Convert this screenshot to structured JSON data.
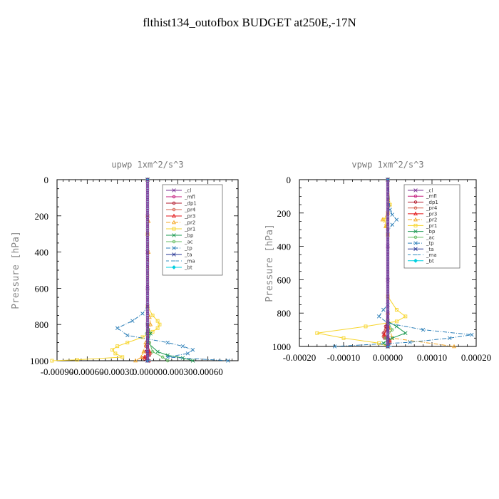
{
  "title": "flthist134_outofbox  BUDGET at250E,-17N",
  "chart_data": [
    {
      "type": "line",
      "title": "upwp   1xm^2/s^3",
      "ylabel": "Pressure [hPa]",
      "xlabel": "",
      "xlim": [
        -0.0009,
        0.0009
      ],
      "ylim": [
        1000,
        0
      ],
      "x_ticks": [
        -0.0009,
        -0.0006,
        -0.0003,
        0.0,
        0.0003,
        0.0006
      ],
      "x_tick_labels": [
        "-0.00090",
        "-0.00060",
        "-0.00030",
        "0.00000",
        "0.00030",
        "0.00060"
      ],
      "y_ticks": [
        0,
        200,
        400,
        600,
        800,
        1000
      ],
      "y_tick_labels": [
        "0",
        "200",
        "400",
        "600",
        "800",
        "1000"
      ],
      "grid": false,
      "legend_position": "top-right",
      "series": [
        {
          "name": "_cl",
          "color": "#7b3294",
          "marker": "cross",
          "dash": "solid",
          "p": [
            0,
            200,
            400,
            600,
            800,
            900,
            950,
            1000
          ],
          "x": [
            0,
            0,
            0,
            0,
            0,
            0,
            0,
            0
          ]
        },
        {
          "name": "_mfl",
          "color": "#c51b7d",
          "marker": "circle",
          "dash": "solid",
          "p": [
            0,
            200,
            400,
            600,
            800,
            900,
            950,
            1000
          ],
          "x": [
            0,
            0,
            0,
            0,
            0,
            0,
            0,
            0
          ]
        },
        {
          "name": "_dp1",
          "color": "#b2182b",
          "marker": "circle",
          "dash": "solid",
          "p": [
            0,
            800,
            900,
            950,
            970,
            990,
            1000
          ],
          "x": [
            0,
            0,
            1e-05,
            -2e-05,
            2e-05,
            -3e-05,
            0
          ]
        },
        {
          "name": "_pr4",
          "color": "#d6604d",
          "marker": "circle",
          "dash": "solid",
          "p": [
            0,
            850,
            920,
            960,
            985,
            1000
          ],
          "x": [
            0,
            0,
            -2e-05,
            3e-05,
            -5e-05,
            2e-05
          ]
        },
        {
          "name": "_pr3",
          "color": "#e31a1c",
          "marker": "triangle",
          "dash": "solid",
          "p": [
            0,
            900,
            950,
            980,
            1000
          ],
          "x": [
            0,
            0,
            2e-05,
            -3e-05,
            1e-05
          ]
        },
        {
          "name": "_pr2",
          "color": "#f5a623",
          "marker": "triangle",
          "dash": "dashdot",
          "p": [
            0,
            200,
            230,
            300,
            400,
            700,
            760,
            800,
            850,
            900,
            950,
            980,
            1000
          ],
          "x": [
            0,
            0,
            1e-05,
            0,
            1e-05,
            0,
            2e-05,
            3e-05,
            1e-05,
            -2e-05,
            -4e-05,
            -6e-05,
            -0.00012
          ]
        },
        {
          "name": "_pr1",
          "color": "#f7d52c",
          "marker": "square",
          "dash": "solid",
          "p": [
            0,
            300,
            700,
            750,
            780,
            800,
            820,
            840,
            870,
            900,
            920,
            940,
            960,
            980,
            995,
            1000
          ],
          "x": [
            0,
            0,
            0,
            5e-05,
            0.0001,
            0.00012,
            0.0001,
            5e-05,
            -5e-05,
            -0.0002,
            -0.0003,
            -0.00035,
            -0.00032,
            -0.00025,
            -0.0007,
            -0.00095
          ]
        },
        {
          "name": "_bp",
          "color": "#1a9850",
          "marker": "cross",
          "dash": "solid",
          "p": [
            0,
            800,
            850,
            900,
            950,
            970,
            985,
            1000
          ],
          "x": [
            0,
            0,
            3e-05,
            0,
            0.0001,
            0.0002,
            0.00035,
            0.00045
          ]
        },
        {
          "name": "_ac",
          "color": "#66bd63",
          "marker": "circle",
          "dash": "solid",
          "p": [
            0,
            800,
            850,
            900,
            950,
            980,
            1000
          ],
          "x": [
            0,
            0,
            -1e-05,
            2e-05,
            5e-05,
            0.00015,
            0.0002
          ]
        },
        {
          "name": "_tp",
          "color": "#2c7fb8",
          "marker": "cross",
          "dash": "dashdot",
          "p": [
            0,
            700,
            740,
            780,
            820,
            860,
            900,
            920,
            940,
            960,
            980,
            1000
          ],
          "x": [
            0,
            0,
            -5e-05,
            -0.00015,
            -0.0003,
            -0.0002,
            0.0002,
            0.00035,
            0.00045,
            0.0004,
            0.0002,
            0.0008
          ]
        },
        {
          "name": "_ta",
          "color": "#253494",
          "marker": "cross",
          "dash": "solid",
          "p": [
            0,
            900,
            1000
          ],
          "x": [
            0,
            0,
            0
          ]
        },
        {
          "name": "_ma",
          "color": "#3690c0",
          "marker": "dash",
          "dash": "dash",
          "p": [
            0,
            950,
            1000
          ],
          "x": [
            0,
            0,
            2e-05
          ]
        },
        {
          "name": "_bt",
          "color": "#00d0e0",
          "marker": "diamond",
          "dash": "solid",
          "p": [
            0,
            1000
          ],
          "x": [
            0,
            0
          ]
        }
      ]
    },
    {
      "type": "line",
      "title": "vpwp   1xm^2/s^3",
      "ylabel": "Pressure [hPa]",
      "xlabel": "",
      "xlim": [
        -0.0002,
        0.0002
      ],
      "ylim": [
        1000,
        0
      ],
      "x_ticks": [
        -0.0002,
        -0.0001,
        0.0,
        0.0001,
        0.0002
      ],
      "x_tick_labels": [
        "-0.00020",
        "-0.00010",
        "0.00000",
        "0.00010",
        "0.00020"
      ],
      "y_ticks": [
        0,
        200,
        400,
        600,
        800,
        1000
      ],
      "y_tick_labels": [
        "0",
        "200",
        "400",
        "600",
        "800",
        "1000"
      ],
      "grid": false,
      "legend_position": "top-right",
      "series": [
        {
          "name": "_cl",
          "color": "#7b3294",
          "marker": "cross",
          "dash": "solid",
          "p": [
            0,
            200,
            400,
            600,
            800,
            900,
            950,
            1000
          ],
          "x": [
            0,
            0,
            0,
            0,
            0,
            0,
            0,
            0
          ]
        },
        {
          "name": "_mfl",
          "color": "#c51b7d",
          "marker": "circle",
          "dash": "solid",
          "p": [
            0,
            200,
            400,
            600,
            800,
            900,
            950,
            1000
          ],
          "x": [
            0,
            0,
            0,
            0,
            0,
            0,
            0,
            0
          ]
        },
        {
          "name": "_dp1",
          "color": "#b2182b",
          "marker": "circle",
          "dash": "solid",
          "p": [
            0,
            800,
            880,
            920,
            950,
            980,
            1000
          ],
          "x": [
            0,
            0,
            -5e-06,
            -1e-05,
            -8e-06,
            5e-06,
            0
          ]
        },
        {
          "name": "_pr4",
          "color": "#d6604d",
          "marker": "circle",
          "dash": "solid",
          "p": [
            0,
            850,
            900,
            940,
            970,
            1000
          ],
          "x": [
            0,
            0,
            -5e-06,
            -1e-05,
            5e-06,
            0
          ]
        },
        {
          "name": "_pr3",
          "color": "#e31a1c",
          "marker": "triangle",
          "dash": "solid",
          "p": [
            0,
            880,
            930,
            960,
            1000
          ],
          "x": [
            0,
            0,
            -8e-06,
            4e-06,
            0
          ]
        },
        {
          "name": "_pr2",
          "color": "#f5a623",
          "marker": "triangle",
          "dash": "dashdot",
          "p": [
            0,
            150,
            200,
            240,
            280,
            330,
            800,
            900,
            950,
            1000
          ],
          "x": [
            0,
            3e-06,
            0,
            -1.2e-05,
            -5e-06,
            0,
            0,
            5e-06,
            1e-05,
            0.00015
          ]
        },
        {
          "name": "_pr1",
          "color": "#f7d52c",
          "marker": "square",
          "dash": "solid",
          "p": [
            0,
            150,
            200,
            240,
            280,
            330,
            700,
            780,
            820,
            850,
            880,
            920,
            950,
            980,
            1000
          ],
          "x": [
            0,
            5e-06,
            0,
            -8e-06,
            -3e-06,
            0,
            0,
            2e-05,
            4e-05,
            2e-05,
            -5e-05,
            -0.00016,
            -0.0001,
            -2e-05,
            0
          ]
        },
        {
          "name": "_bp",
          "color": "#1a9850",
          "marker": "cross",
          "dash": "solid",
          "p": [
            0,
            850,
            880,
            920,
            950,
            980,
            1000
          ],
          "x": [
            0,
            0,
            2e-05,
            4e-05,
            1e-05,
            -1e-05,
            0
          ]
        },
        {
          "name": "_ac",
          "color": "#66bd63",
          "marker": "circle",
          "dash": "solid",
          "p": [
            0,
            850,
            900,
            950,
            1000
          ],
          "x": [
            0,
            0,
            1e-05,
            -5e-06,
            0
          ]
        },
        {
          "name": "_tp",
          "color": "#2c7fb8",
          "marker": "cross",
          "dash": "dashdot",
          "p": [
            0,
            180,
            210,
            240,
            270,
            310,
            750,
            780,
            820,
            860,
            900,
            930,
            950,
            975,
            1000
          ],
          "x": [
            0,
            5e-06,
            1e-05,
            2e-05,
            1e-05,
            0,
            0,
            -1e-05,
            -2e-05,
            0,
            8e-05,
            0.00019,
            0.00014,
            5e-05,
            -0.00012
          ]
        },
        {
          "name": "_ta",
          "color": "#253494",
          "marker": "cross",
          "dash": "solid",
          "p": [
            0,
            900,
            1000
          ],
          "x": [
            0,
            0,
            0
          ]
        },
        {
          "name": "_ma",
          "color": "#3690c0",
          "marker": "dash",
          "dash": "dash",
          "p": [
            0,
            950,
            1000
          ],
          "x": [
            0,
            0,
            5e-06
          ]
        },
        {
          "name": "_bt",
          "color": "#00d0e0",
          "marker": "diamond",
          "dash": "solid",
          "p": [
            0,
            1000
          ],
          "x": [
            0,
            0
          ]
        }
      ]
    }
  ]
}
